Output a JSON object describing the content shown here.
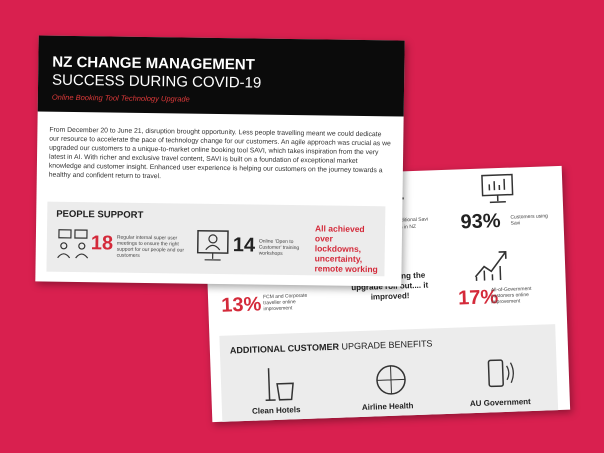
{
  "front": {
    "title_line1": "NZ CHANGE MANAGEMENT",
    "title_line2": "SUCCESS DURING COVID-19",
    "subtitle": "Online Booking Tool Technology Upgrade",
    "paragraph": "From December 20 to June 21, disruption brought opportunity. Less people travelling meant we could dedicate our resource to accelerate the pace of technology change for our customers. An agile approach was crucial as we upgraded our customers to a unique-to-market online booking tool SAVI, which takes inspiration from the very latest in AI. With richer and exclusive travel content, SAVI is built on a foundation of exceptional market knowledge and customer insight. Enhanced user experience is helping our customers on the journey towards a healthy and confident return to travel.",
    "people_support": {
      "heading": "PEOPLE SUPPORT",
      "stats": [
        {
          "value": "18",
          "text": "Regular internal super user meetings to ensure the right support for our people and our customers"
        },
        {
          "value": "14",
          "text": "Online 'Open to Customer' training workshops"
        }
      ],
      "note": "All achieved over lockdowns, uncertainty, remote working"
    }
  },
  "back": {
    "partial_lines": [
      "additional Savi",
      "ers in NZ"
    ],
    "stats": [
      {
        "value": "93%",
        "text": "Customers using Savi"
      },
      {
        "value": "13%",
        "text": "FCM and Corporate traveller online improvement"
      },
      {
        "value": "17%",
        "text": "All-of-Government customers online improvement"
      }
    ],
    "quote": "idn't fall during the upgrade roll out.... it improved!",
    "benefits": {
      "heading_bold": "ADDITIONAL CUSTOMER",
      "heading_rest": "UPGRADE BENEFITS",
      "items": [
        "Clean Hotels",
        "Airline Health",
        "AU Government"
      ]
    }
  }
}
